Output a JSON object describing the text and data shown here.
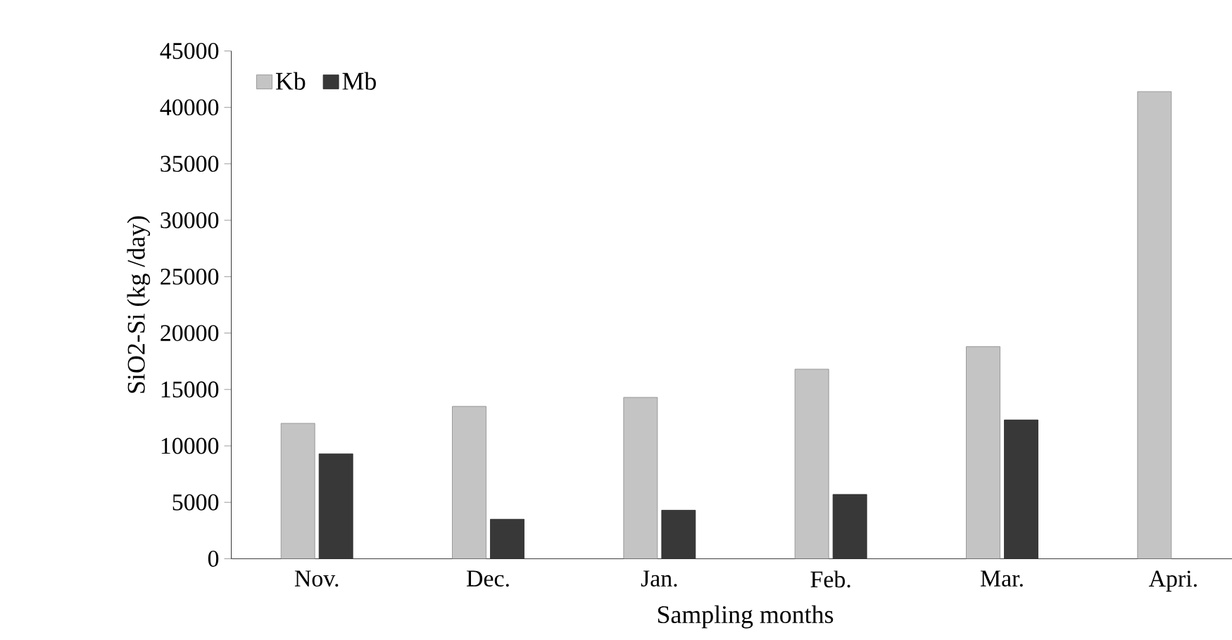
{
  "chart_data": {
    "type": "bar",
    "xlabel": "Sampling months",
    "ylabel": "SiO2-Si (kg /day)",
    "categories": [
      "Nov.",
      "Dec.",
      "Jan.",
      "Feb.",
      "Mar.",
      "Apri."
    ],
    "series": [
      {
        "name": "Kb",
        "color": "#c4c4c4",
        "values": [
          12000,
          13500,
          14300,
          16800,
          18800,
          41400
        ]
      },
      {
        "name": "Mb",
        "color": "#383838",
        "values": [
          9300,
          3500,
          4300,
          5700,
          12300,
          null
        ]
      }
    ],
    "ylim": [
      0,
      45000
    ],
    "yticks": [
      0,
      5000,
      10000,
      15000,
      20000,
      25000,
      30000,
      35000,
      40000,
      45000
    ],
    "grid": false,
    "legend": "top left"
  }
}
